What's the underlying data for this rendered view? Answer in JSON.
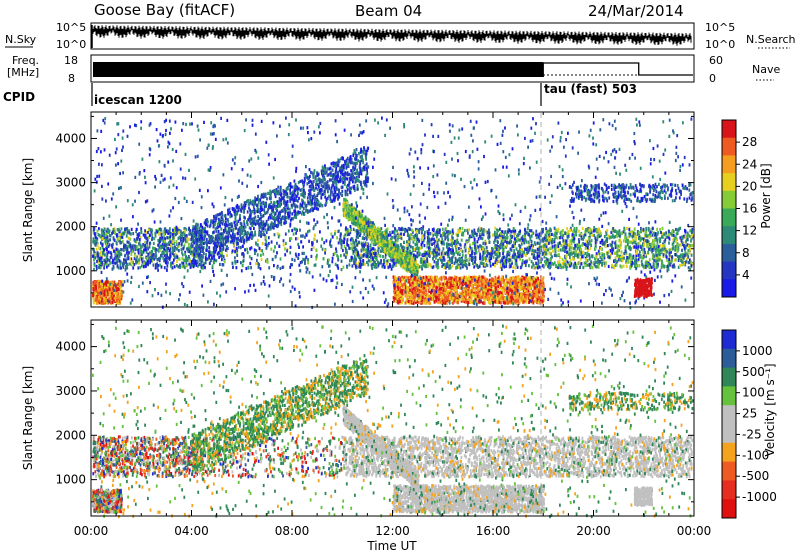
{
  "header": {
    "station": "Goose Bay (fitACF)",
    "beam": "Beam 04",
    "date": "24/Mar/2014"
  },
  "panels": {
    "nsky_label": "N.Sky",
    "nsky_ticks": [
      "10^5",
      "10^0"
    ],
    "nsearch_label": "N.Search",
    "nsearch_ticks": [
      "10^5",
      "10^0"
    ],
    "freq_label": "Freq.",
    "freq_unit": "[MHz]",
    "freq_ticks": [
      "18",
      "8"
    ],
    "nave_label": "Nave",
    "nave_ticks": [
      "60",
      "0"
    ],
    "cpid_label": "CPID",
    "cpid_segments": [
      {
        "name": "icescan 1200",
        "start_hour": 0,
        "end_hour": 18
      },
      {
        "name": "tau (fast) 503",
        "start_hour": 18,
        "end_hour": 24
      }
    ]
  },
  "chart_data": [
    {
      "type": "heatmap",
      "title": "",
      "xlabel": "",
      "ylabel": "Slant Range [km]",
      "xlim": [
        "00:00",
        "24:00"
      ],
      "ylim": [
        180,
        4600
      ],
      "x_ticks": [
        "00:00",
        "04:00",
        "08:00",
        "12:00",
        "16:00",
        "20:00",
        "00:00"
      ],
      "y_ticks": [
        1000,
        2000,
        3000,
        4000
      ],
      "colorbar": {
        "label": "Power [dB]",
        "ticks": [
          "28",
          "24",
          "20",
          "16",
          "12",
          "8",
          "4"
        ],
        "colors": [
          "#d8141a",
          "#ee5a22",
          "#f59d1e",
          "#e6cf1f",
          "#86cc37",
          "#3aaa58",
          "#2c8a76",
          "#2b5f9c",
          "#2436c2",
          "#1a1ae8"
        ]
      }
    },
    {
      "type": "heatmap",
      "title": "",
      "xlabel": "Time UT",
      "ylabel": "Slant Range [km]",
      "xlim": [
        "00:00",
        "24:00"
      ],
      "ylim": [
        180,
        4600
      ],
      "x_ticks": [
        "00:00",
        "04:00",
        "08:00",
        "12:00",
        "16:00",
        "20:00",
        "00:00"
      ],
      "y_ticks": [
        1000,
        2000,
        3000,
        4000
      ],
      "colorbar": {
        "label": "Velocity [m s⁻¹]",
        "ticks": [
          "1000",
          "500",
          "100",
          "25",
          "-25",
          "-100",
          "-500",
          "-1000"
        ],
        "colors": [
          "#1e2bd2",
          "#2d5d98",
          "#2f8758",
          "#66c23c",
          "#c0c0c0",
          "#c0c0c0",
          "#f5a21e",
          "#ee5a22",
          "#e52e1f",
          "#e01010"
        ]
      }
    }
  ]
}
